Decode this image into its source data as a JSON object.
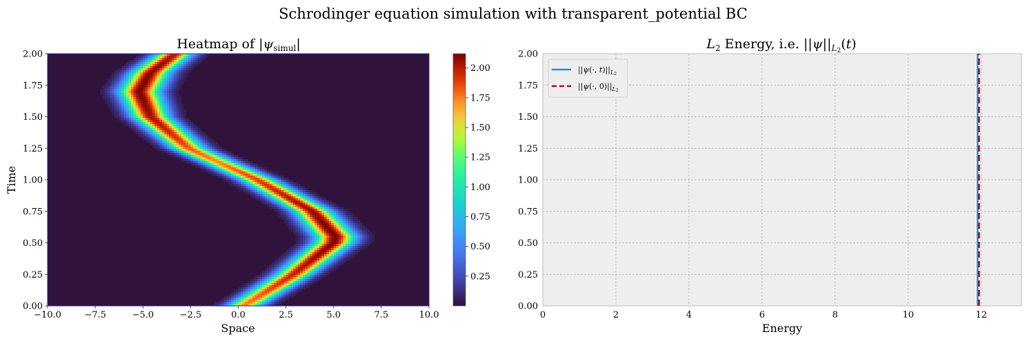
{
  "suptitle": "Schrodinger equation simulation with transparent_potential BC",
  "colors": {
    "heatmap_background": "#30123b",
    "line_solid": "#348abd",
    "line_dashed": "#a60628",
    "axes_face_right": "#eeeeee",
    "grid": "#b0b0b0"
  },
  "chart_data": [
    {
      "type": "heatmap",
      "title": "Heatmap of |ψ_simul|",
      "title_math": "ψsimul",
      "title_prefix": "Heatmap of ",
      "xlabel": "Space",
      "ylabel": "Time",
      "xlim": [
        -10,
        10
      ],
      "ylim": [
        0,
        2
      ],
      "xticks": [
        "−10.0",
        "−7.5",
        "−5.0",
        "−2.5",
        "0.0",
        "2.5",
        "5.0",
        "7.5",
        "10.0"
      ],
      "xtick_values": [
        -10,
        -7.5,
        -5,
        -2.5,
        0,
        2.5,
        5,
        7.5,
        10
      ],
      "yticks": [
        "0.00",
        "0.25",
        "0.50",
        "0.75",
        "1.00",
        "1.25",
        "1.50",
        "1.75",
        "2.00"
      ],
      "ytick_values": [
        0,
        0.25,
        0.5,
        0.75,
        1,
        1.25,
        1.5,
        1.75,
        2
      ],
      "colormap": "turbo",
      "colorbar": {
        "vmin": 0.0,
        "vmax": 2.12,
        "ticks": [
          "0.25",
          "0.50",
          "0.75",
          "1.00",
          "1.25",
          "1.50",
          "1.75",
          "2.00"
        ],
        "tick_values": [
          0.25,
          0.5,
          0.75,
          1,
          1.25,
          1.5,
          1.75,
          2
        ]
      },
      "wavepacket": {
        "description_points": [
          {
            "t": 0.0,
            "center": 0.3
          },
          {
            "t": 0.25,
            "center": 2.9
          },
          {
            "t": 0.5,
            "center": 5.0
          },
          {
            "t": 0.55,
            "center": 5.1
          },
          {
            "t": 0.75,
            "center": 3.9
          },
          {
            "t": 1.0,
            "center": 1.0
          },
          {
            "t": 1.25,
            "center": -2.6
          },
          {
            "t": 1.5,
            "center": -4.6
          },
          {
            "t": 1.7,
            "center": -5.2
          },
          {
            "t": 1.85,
            "center": -4.6
          },
          {
            "t": 2.0,
            "center": -3.3
          }
        ],
        "amplitude": 2.12,
        "width": 1.0,
        "period": 2.3
      }
    },
    {
      "type": "line",
      "title": "L₂ Energy, i.e. ||ψ||_L₂(t)",
      "xlabel": "Energy",
      "ylabel": "",
      "xlim": [
        0,
        13.1
      ],
      "ylim": [
        0,
        2
      ],
      "xticks": [
        "0",
        "2",
        "4",
        "6",
        "8",
        "10",
        "12"
      ],
      "xtick_values": [
        0,
        2,
        4,
        6,
        8,
        10,
        12
      ],
      "yticks": [
        "0.00",
        "0.25",
        "0.50",
        "0.75",
        "1.00",
        "1.25",
        "1.50",
        "1.75",
        "2.00"
      ],
      "ytick_values": [
        0,
        0.25,
        0.5,
        0.75,
        1,
        1.25,
        1.5,
        1.75,
        2
      ],
      "grid": true,
      "legend_position": "top-left",
      "series": [
        {
          "name": "||ψ(·,t)||_L₂",
          "style": "solid",
          "x": [
            11.9,
            11.9
          ],
          "y": [
            0,
            2
          ]
        },
        {
          "name": "||ψ(·,0)||_L₂",
          "style": "dashed",
          "x": [
            11.9,
            11.9
          ],
          "y": [
            0,
            2
          ]
        }
      ]
    }
  ]
}
